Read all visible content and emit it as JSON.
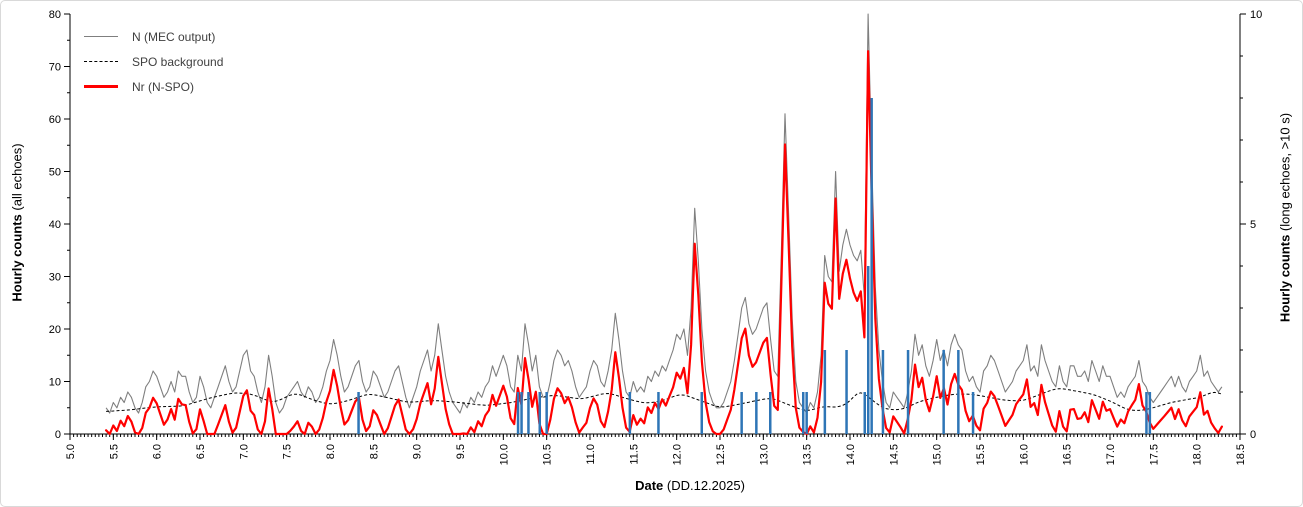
{
  "colors": {
    "n_line": "#7f7f7f",
    "spo_line": "#000000",
    "nr_line": "#ff0000",
    "bar": "#2e75b6",
    "axis": "#000000",
    "frame_border": "#d9d9d9"
  },
  "legend": {
    "items": [
      {
        "label": "N (MEC output)",
        "style": "thin-gray-line"
      },
      {
        "label": "SPO background",
        "style": "dashed-black-line"
      },
      {
        "label": "Nr (N-SPO)",
        "style": "thick-red-line"
      }
    ]
  },
  "axes": {
    "x": {
      "title_bold": "Date",
      "title_rest": " (DD.12.2025)",
      "min": 5.0,
      "max": 18.5,
      "major_step": 0.5,
      "minor_step": 0.0416667,
      "tick_labels": [
        "5.0",
        "5.5",
        "6.0",
        "6.5",
        "7.0",
        "7.5",
        "8.0",
        "8.5",
        "9.0",
        "9.5",
        "10.0",
        "10.5",
        "11.0",
        "11.5",
        "12.0",
        "12.5",
        "13.0",
        "13.5",
        "14.0",
        "14.5",
        "15.0",
        "15.5",
        "16.0",
        "16.5",
        "17.0",
        "17.5",
        "18.0",
        "18.5"
      ]
    },
    "y_left": {
      "title_bold": "Hourly counts",
      "title_rest": " (all echoes)",
      "min": 0,
      "max": 80,
      "major_step": 10,
      "minor_step": 5,
      "tick_labels": [
        "0",
        "10",
        "20",
        "30",
        "40",
        "50",
        "60",
        "70",
        "80"
      ]
    },
    "y_right": {
      "title_bold": "Hourly counts",
      "title_rest": " (long echoes, >10 s)",
      "min": 0,
      "max": 10,
      "major_step": 5,
      "minor_step": 1,
      "tick_labels": [
        "0",
        "5",
        "10"
      ]
    }
  },
  "chart_data": {
    "type": "line+bar",
    "title": "",
    "x_unit": "date in December 2025 (day.fraction)",
    "x_range": [
      5.0,
      18.5
    ],
    "y_left_range": [
      0,
      80
    ],
    "y_right_range": [
      0,
      10
    ],
    "grid": false,
    "legend_position": "top-left-inside",
    "hourly_x_start": 5.4166667,
    "hourly_x_step": 0.0416667,
    "series": [
      {
        "name": "N (MEC output)",
        "type": "line",
        "axis": "left",
        "values": [
          5,
          4,
          6,
          5,
          7,
          6,
          8,
          7,
          5,
          4,
          6,
          9,
          10,
          12,
          11,
          9,
          7,
          8,
          10,
          8,
          12,
          11,
          11,
          8,
          6,
          7,
          11,
          9,
          6,
          5,
          7,
          9,
          11,
          13,
          10,
          8,
          9,
          12,
          15,
          16,
          12,
          11,
          8,
          6,
          9,
          15,
          11,
          6,
          4,
          5,
          7,
          8,
          9,
          10,
          8,
          7,
          9,
          8,
          6,
          7,
          9,
          12,
          14,
          18,
          15,
          11,
          8,
          9,
          11,
          13,
          14,
          10,
          8,
          9,
          12,
          11,
          9,
          7,
          8,
          10,
          12,
          13,
          10,
          7,
          5,
          7,
          9,
          12,
          14,
          16,
          12,
          15,
          21,
          16,
          11,
          8,
          6,
          5,
          4,
          6,
          5,
          7,
          6,
          8,
          7,
          9,
          10,
          13,
          11,
          13,
          15,
          13,
          9,
          8,
          15,
          12,
          21,
          17,
          12,
          15,
          9,
          7,
          7,
          10,
          14,
          16,
          15,
          13,
          14,
          12,
          9,
          7,
          8,
          9,
          12,
          14,
          13,
          10,
          9,
          12,
          16,
          23,
          18,
          12,
          8,
          7,
          10,
          8,
          9,
          8,
          11,
          10,
          12,
          11,
          13,
          12,
          14,
          16,
          19,
          18,
          20,
          15,
          24,
          43,
          33,
          20,
          12,
          8,
          6,
          5,
          5,
          6,
          8,
          10,
          14,
          19,
          24,
          26,
          21,
          19,
          20,
          22,
          24,
          25,
          18,
          12,
          11,
          35,
          61,
          42,
          22,
          10,
          6,
          5,
          4,
          6,
          5,
          8,
          15,
          34,
          30,
          29,
          50,
          31,
          36,
          39,
          36,
          34,
          33,
          35,
          26,
          80,
          52,
          28,
          16,
          10,
          6,
          5,
          8,
          7,
          6,
          5,
          8,
          12,
          19,
          15,
          17,
          13,
          11,
          14,
          18,
          14,
          16,
          13,
          17,
          19,
          17,
          16,
          12,
          10,
          11,
          9,
          8,
          12,
          13,
          15,
          14,
          12,
          10,
          8,
          9,
          10,
          12,
          13,
          14,
          17,
          12,
          13,
          11,
          17,
          14,
          12,
          10,
          9,
          13,
          10,
          9,
          13,
          13,
          11,
          11,
          12,
          10,
          14,
          12,
          10,
          13,
          11,
          11,
          9,
          7,
          8,
          7,
          9,
          10,
          11,
          14,
          10,
          9,
          7,
          6,
          7,
          8,
          9,
          10,
          11,
          9,
          11,
          9,
          8,
          10,
          11,
          12,
          15,
          11,
          12,
          10,
          9,
          8,
          9
        ]
      },
      {
        "name": "SPO background",
        "type": "line-dashed",
        "axis": "left",
        "control_points": [
          [
            5.42,
            4.3
          ],
          [
            5.7,
            4.6
          ],
          [
            6.0,
            5.2
          ],
          [
            6.3,
            5.3
          ],
          [
            6.6,
            6.8
          ],
          [
            6.9,
            7.9
          ],
          [
            7.1,
            7.6
          ],
          [
            7.35,
            5.9
          ],
          [
            7.6,
            7.9
          ],
          [
            7.8,
            6.5
          ],
          [
            8.0,
            5.6
          ],
          [
            8.2,
            6.3
          ],
          [
            8.45,
            7.7
          ],
          [
            8.7,
            6.8
          ],
          [
            8.9,
            6.0
          ],
          [
            9.2,
            6.4
          ],
          [
            9.5,
            6.0
          ],
          [
            9.8,
            5.4
          ],
          [
            10.1,
            6.0
          ],
          [
            10.35,
            6.9
          ],
          [
            10.6,
            7.4
          ],
          [
            10.9,
            6.6
          ],
          [
            11.2,
            7.9
          ],
          [
            11.45,
            6.6
          ],
          [
            11.65,
            5.8
          ],
          [
            11.85,
            6.4
          ],
          [
            12.05,
            7.7
          ],
          [
            12.3,
            6.2
          ],
          [
            12.5,
            5.0
          ],
          [
            12.7,
            5.6
          ],
          [
            12.9,
            6.3
          ],
          [
            13.1,
            6.9
          ],
          [
            13.3,
            5.5
          ],
          [
            13.5,
            4.3
          ],
          [
            13.7,
            5.3
          ],
          [
            13.85,
            5.0
          ],
          [
            14.0,
            6.0
          ],
          [
            14.1,
            8.6
          ],
          [
            14.25,
            6.5
          ],
          [
            14.4,
            4.7
          ],
          [
            14.6,
            4.6
          ],
          [
            14.8,
            6.2
          ],
          [
            15.0,
            7.0
          ],
          [
            15.2,
            7.6
          ],
          [
            15.4,
            7.6
          ],
          [
            15.6,
            7.0
          ],
          [
            15.8,
            6.4
          ],
          [
            16.0,
            6.3
          ],
          [
            16.2,
            7.6
          ],
          [
            16.4,
            8.8
          ],
          [
            16.6,
            8.2
          ],
          [
            16.8,
            7.6
          ],
          [
            17.0,
            6.3
          ],
          [
            17.2,
            4.6
          ],
          [
            17.35,
            4.4
          ],
          [
            17.5,
            5.0
          ],
          [
            17.7,
            6.0
          ],
          [
            17.9,
            6.6
          ],
          [
            18.05,
            7.0
          ],
          [
            18.2,
            8.2
          ],
          [
            18.29,
            7.6
          ]
        ]
      },
      {
        "name": "Nr (N-SPO)",
        "type": "line",
        "axis": "left",
        "derived": "max(0, N - SPO)"
      },
      {
        "name": "long echoes (>10 s)",
        "type": "bar",
        "axis": "right",
        "points": [
          [
            8.33,
            1
          ],
          [
            10.17,
            1
          ],
          [
            10.21,
            1
          ],
          [
            10.29,
            1
          ],
          [
            10.42,
            1
          ],
          [
            10.5,
            1
          ],
          [
            11.46,
            1
          ],
          [
            11.79,
            1
          ],
          [
            12.29,
            1
          ],
          [
            12.75,
            1
          ],
          [
            12.92,
            1
          ],
          [
            13.08,
            1
          ],
          [
            13.46,
            1
          ],
          [
            13.5,
            1
          ],
          [
            13.71,
            2
          ],
          [
            13.96,
            2
          ],
          [
            14.17,
            1
          ],
          [
            14.21,
            4
          ],
          [
            14.25,
            8
          ],
          [
            14.38,
            2
          ],
          [
            14.67,
            2
          ],
          [
            15.08,
            2
          ],
          [
            15.25,
            2
          ],
          [
            15.42,
            1
          ],
          [
            17.42,
            1
          ],
          [
            17.46,
            1
          ]
        ]
      }
    ]
  }
}
